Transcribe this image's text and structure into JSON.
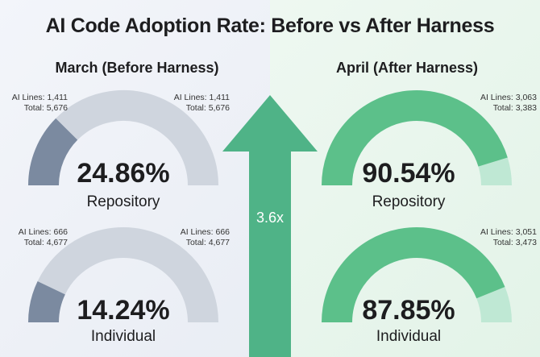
{
  "title": "AI Code Adoption Rate: Before vs After Harness",
  "colors": {
    "before_fill": "#7b8aa0",
    "before_track": "#cfd5de",
    "after_fill": "#5cc08a",
    "after_track": "#bfe8d4",
    "arrow": "#4fb387"
  },
  "multiplier": "3.6x",
  "chart_data": [
    {
      "type": "gauge",
      "panel": "March (Before Harness)",
      "label": "Repository",
      "percent_text": "24.86%",
      "value": 24.86,
      "ai_lines_left": "AI Lines: 1,411",
      "total_left": "Total: 5,676",
      "ai_lines_right": "AI Lines: 1,411",
      "total_right": "Total: 5,676"
    },
    {
      "type": "gauge",
      "panel": "March (Before Harness)",
      "label": "Individual",
      "percent_text": "14.24%",
      "value": 14.24,
      "ai_lines_left": "AI Lines: 666",
      "total_left": "Total: 4,677",
      "ai_lines_right": "AI Lines: 666",
      "total_right": "Total: 4,677"
    },
    {
      "type": "gauge",
      "panel": "April (After Harness)",
      "label": "Repository",
      "percent_text": "90.54%",
      "value": 90.54,
      "ai_lines_right": "AI Lines: 3,063",
      "total_right": "Total: 3,383"
    },
    {
      "type": "gauge",
      "panel": "April (After Harness)",
      "label": "Individual",
      "percent_text": "87.85%",
      "value": 87.85,
      "ai_lines_right": "AI Lines: 3,051",
      "total_right": "Total: 3,473"
    }
  ]
}
